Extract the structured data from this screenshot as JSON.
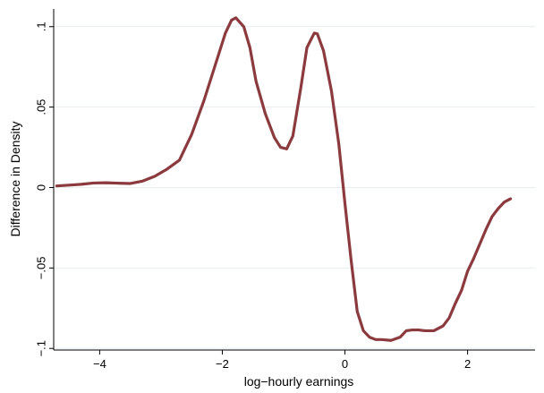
{
  "chart_data": {
    "type": "line",
    "title": "",
    "xlabel": "log−hourly earnings",
    "ylabel": "Difference in Density",
    "xlim": [
      -4.75,
      3.1
    ],
    "ylim": [
      -0.101,
      0.111
    ],
    "x_ticks": [
      {
        "value": -4,
        "label": "−4"
      },
      {
        "value": -2,
        "label": "−2"
      },
      {
        "value": 0,
        "label": "0"
      },
      {
        "value": 2,
        "label": "2"
      }
    ],
    "y_ticks": [
      {
        "value": -0.1,
        "label": "−.1"
      },
      {
        "value": -0.05,
        "label": "−.05"
      },
      {
        "value": 0,
        "label": "0"
      },
      {
        "value": 0.05,
        "label": ".05"
      },
      {
        "value": 0.1,
        "label": ".1"
      }
    ],
    "grid": true,
    "legend": "none",
    "series": [
      {
        "color": "#8b3a3e",
        "x": [
          -4.7,
          -4.5,
          -4.3,
          -4.1,
          -3.9,
          -3.7,
          -3.5,
          -3.3,
          -3.1,
          -2.9,
          -2.7,
          -2.5,
          -2.3,
          -2.1,
          -1.95,
          -1.85,
          -1.78,
          -1.65,
          -1.55,
          -1.45,
          -1.3,
          -1.15,
          -1.05,
          -0.95,
          -0.85,
          -0.72,
          -0.62,
          -0.5,
          -0.45,
          -0.35,
          -0.22,
          -0.1,
          0.0,
          0.1,
          0.2,
          0.3,
          0.4,
          0.5,
          0.6,
          0.75,
          0.9,
          1.0,
          1.1,
          1.2,
          1.3,
          1.45,
          1.6,
          1.7,
          1.8,
          1.9,
          2.0,
          2.1,
          2.2,
          2.3,
          2.4,
          2.5,
          2.6,
          2.7
        ],
        "y": [
          0.001,
          0.0015,
          0.002,
          0.0028,
          0.003,
          0.0027,
          0.0025,
          0.004,
          0.007,
          0.0115,
          0.017,
          0.033,
          0.054,
          0.078,
          0.096,
          0.104,
          0.1055,
          0.1,
          0.087,
          0.066,
          0.046,
          0.031,
          0.025,
          0.024,
          0.032,
          0.062,
          0.087,
          0.096,
          0.0955,
          0.085,
          0.06,
          0.027,
          -0.01,
          -0.045,
          -0.077,
          -0.089,
          -0.093,
          -0.0945,
          -0.0945,
          -0.095,
          -0.093,
          -0.089,
          -0.0885,
          -0.0885,
          -0.089,
          -0.089,
          -0.086,
          -0.081,
          -0.072,
          -0.064,
          -0.052,
          -0.044,
          -0.035,
          -0.026,
          -0.018,
          -0.013,
          -0.009,
          -0.007
        ]
      }
    ]
  }
}
